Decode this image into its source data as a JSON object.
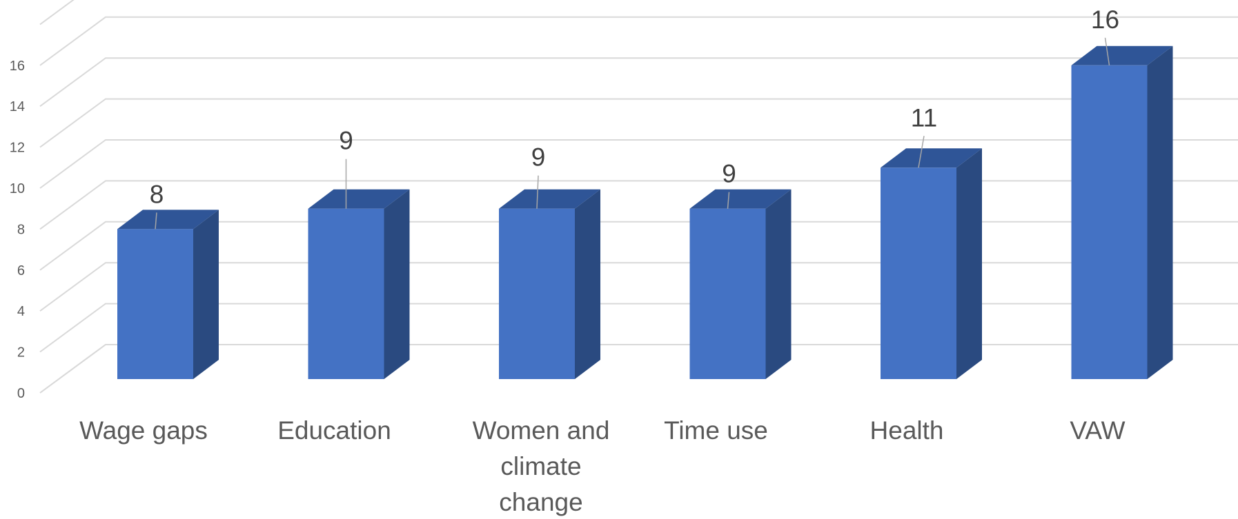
{
  "chart_data": {
    "type": "bar",
    "style": "3d-column",
    "categories": [
      "Wage gaps",
      "Education",
      "Women and climate change",
      "Time use",
      "Health",
      "VAW"
    ],
    "category_label_lines": [
      [
        "Wage gaps"
      ],
      [
        "Education"
      ],
      [
        "Women and",
        "climate",
        "change"
      ],
      [
        "Time use"
      ],
      [
        "Health"
      ],
      [
        "VAW"
      ]
    ],
    "values": [
      8,
      9,
      9,
      9,
      11,
      16
    ],
    "data_labels": [
      "8",
      "9",
      "9",
      "9",
      "11",
      "16"
    ],
    "ylim": [
      0,
      18
    ],
    "yticks": [
      0,
      2,
      4,
      6,
      8,
      10,
      12,
      14,
      16
    ],
    "ytick_labels": [
      "0",
      "2",
      "4",
      "6",
      "8",
      "10",
      "12",
      "14",
      "16"
    ],
    "grid": true,
    "legend": "none",
    "title": "",
    "xlabel": "",
    "ylabel": "",
    "colors": {
      "front": "#4472C4",
      "side": "#2A4A80",
      "top": "#2F5597",
      "grid": "#D9D9D9",
      "leader": "#A6A6A6",
      "tick_text": "#595959",
      "label_text": "#404040"
    }
  }
}
